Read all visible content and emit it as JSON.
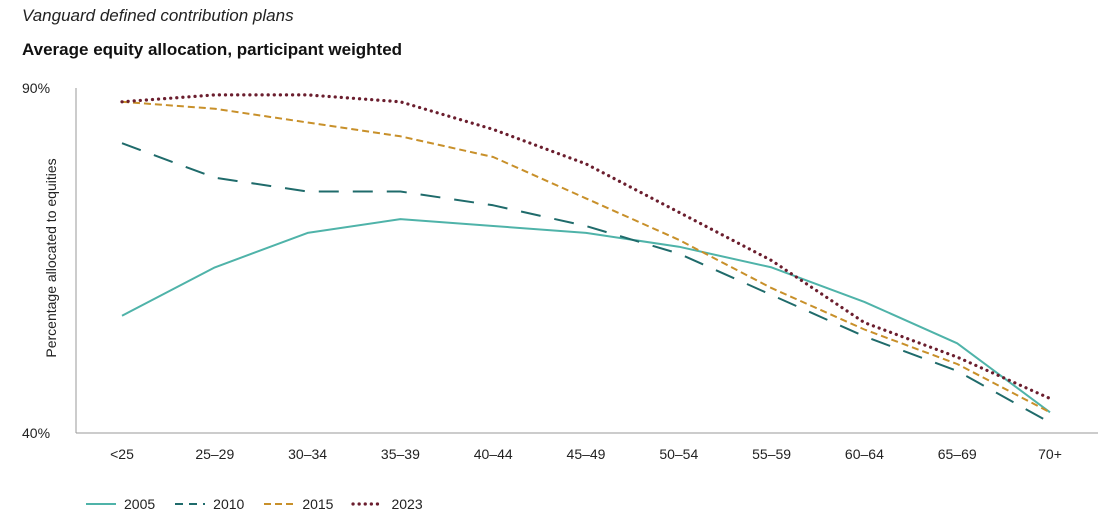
{
  "header": {
    "subtitle": "Vanguard defined contribution plans",
    "title": "Average equity allocation, participant weighted"
  },
  "chart_data": {
    "type": "line",
    "subtitle": "Vanguard defined contribution plans",
    "title": "Average equity allocation, participant weighted",
    "xlabel": "",
    "ylabel": "Percentage allocated to equities",
    "ylim": [
      40,
      90
    ],
    "y_ticks": [
      "90%",
      "40%"
    ],
    "categories": [
      "<25",
      "25–29",
      "30–34",
      "35–39",
      "40–44",
      "45–49",
      "50–54",
      "55–59",
      "60–64",
      "65–69",
      "70+"
    ],
    "grid": false,
    "legend_position": "bottom-left",
    "series": [
      {
        "name": "2005",
        "color": "#4fb3a9",
        "style": "solid",
        "values": [
          57,
          64,
          69,
          71,
          70,
          69,
          67,
          64,
          59,
          53,
          43
        ]
      },
      {
        "name": "2010",
        "color": "#1f6b6b",
        "style": "dashed",
        "values": [
          82,
          77,
          75,
          75,
          73,
          70,
          66,
          60,
          54,
          49,
          41.5
        ]
      },
      {
        "name": "2015",
        "color": "#c8902a",
        "style": "dashed-short",
        "values": [
          88,
          87,
          85,
          83,
          80,
          74,
          68,
          61,
          55,
          50,
          43
        ]
      },
      {
        "name": "2023",
        "color": "#6b1e2e",
        "style": "dotted",
        "values": [
          88,
          89,
          89,
          88,
          84,
          79,
          72,
          65,
          56,
          51,
          45
        ]
      }
    ]
  }
}
